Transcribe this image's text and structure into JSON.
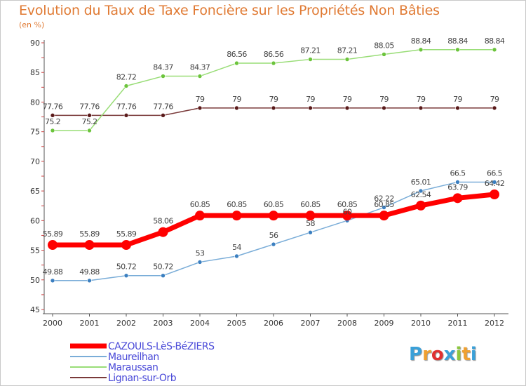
{
  "title": "Evolution du Taux de Taxe Foncière sur les Propriétés Non Bâties",
  "unit_label": "(en %)",
  "logo": {
    "text": "Proxiti",
    "letters": [
      "P",
      "r",
      "o",
      "x",
      "i",
      "t",
      "i"
    ],
    "colors": [
      "#3aa0d8",
      "#f0a030",
      "#e03030",
      "#3aa0d8",
      "#8cc63f",
      "#f0a030",
      "#3aa0d8"
    ]
  },
  "chart_data": {
    "type": "line",
    "x": [
      "2000",
      "2001",
      "2002",
      "2003",
      "2004",
      "2005",
      "2006",
      "2007",
      "2008",
      "2009",
      "2010",
      "2011",
      "2012"
    ],
    "ylim": [
      45,
      90
    ],
    "yticks": [
      45,
      50,
      55,
      60,
      65,
      70,
      75,
      80,
      85,
      90
    ],
    "grid": false,
    "legend_position": "bottom-left",
    "series": [
      {
        "name": "CAZOULS-LèS-BéZIERS",
        "color": "#ff0000",
        "values": [
          55.89,
          55.89,
          55.89,
          58.06,
          60.85,
          60.85,
          60.85,
          60.85,
          60.85,
          60.85,
          62.54,
          63.79,
          64.42
        ],
        "labels": [
          "55.89",
          "55.89",
          "55.89",
          "58.06",
          "60.85",
          "60.85",
          "60.85",
          "60.85",
          "60.85",
          "60.85",
          "62.54",
          "63.79",
          "64.42"
        ]
      },
      {
        "name": "Maureilhan",
        "color": "#7aadd8",
        "values": [
          49.88,
          49.88,
          50.72,
          50.72,
          53,
          54,
          56,
          58,
          60,
          62.22,
          65.01,
          66.5,
          66.5
        ],
        "labels": [
          "49.88",
          "49.88",
          "50.72",
          "50.72",
          "53",
          "54",
          "56",
          "58",
          "60",
          "62.22",
          "65.01",
          "66.5",
          "66.5"
        ]
      },
      {
        "name": "Maraussan",
        "color": "#99dd77",
        "values": [
          75.2,
          75.2,
          82.72,
          84.37,
          84.37,
          86.56,
          86.56,
          87.21,
          87.21,
          88.05,
          88.84,
          88.84,
          88.84
        ],
        "labels": [
          "75.2",
          "75.2",
          "82.72",
          "84.37",
          "84.37",
          "86.56",
          "86.56",
          "87.21",
          "87.21",
          "88.05",
          "88.84",
          "88.84",
          "88.84"
        ]
      },
      {
        "name": "Lignan-sur-Orb",
        "color": "#7a3a3a",
        "values": [
          77.76,
          77.76,
          77.76,
          77.76,
          79,
          79,
          79,
          79,
          79,
          79,
          79,
          79,
          79
        ],
        "labels": [
          "77.76",
          "77.76",
          "77.76",
          "77.76",
          "79",
          "79",
          "79",
          "79",
          "79",
          "79",
          "79",
          "79",
          "79"
        ]
      }
    ]
  }
}
